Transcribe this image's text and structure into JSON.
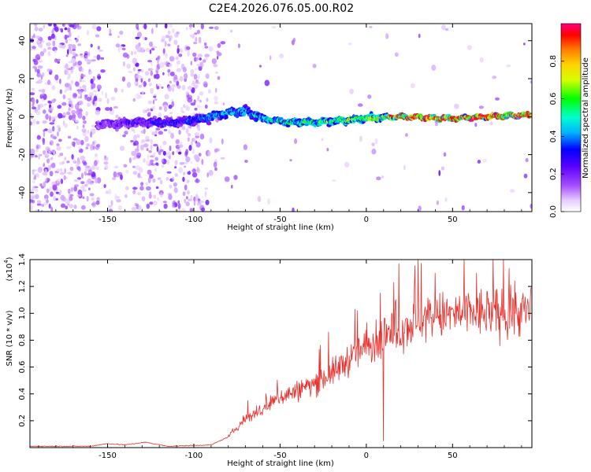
{
  "title": "C2E4.2026.076.05.00.R02",
  "chart_data": [
    {
      "type": "heatmap",
      "name": "spectrogram",
      "xlabel": "Height of straight line (km)",
      "ylabel": "Frequency (Hz)",
      "xlim": [
        -195,
        96
      ],
      "ylim": [
        -50,
        49
      ],
      "xticks": [
        -150,
        -100,
        -50,
        0,
        50
      ],
      "yticks": [
        -40,
        -20,
        0,
        20,
        40
      ],
      "colorbar": {
        "label": "Normalized spectral amplitude",
        "range": [
          0,
          1
        ],
        "ticks": [
          0.0,
          0.2,
          0.4,
          0.6,
          0.8
        ],
        "tick_labels": [
          "0.0",
          "0.2",
          "0.4",
          "0.6",
          "0.8"
        ],
        "colormap": [
          "#ffffff",
          "#b44bff",
          "#7a00ff",
          "#0000ff",
          "#00c8ff",
          "#00ff00",
          "#ffff00",
          "#ff7f00",
          "#ff0000",
          "#ff007f"
        ]
      },
      "ridge": [
        {
          "x": -155,
          "y": -4
        },
        {
          "x": -130,
          "y": -3
        },
        {
          "x": -110,
          "y": -3
        },
        {
          "x": -95,
          "y": -1
        },
        {
          "x": -80,
          "y": 2
        },
        {
          "x": -70,
          "y": 3
        },
        {
          "x": -60,
          "y": -1
        },
        {
          "x": -45,
          "y": -3
        },
        {
          "x": -30,
          "y": -3
        },
        {
          "x": -15,
          "y": -2
        },
        {
          "x": 0,
          "y": -1
        },
        {
          "x": 20,
          "y": 0
        },
        {
          "x": 50,
          "y": -1
        },
        {
          "x": 70,
          "y": 0
        },
        {
          "x": 96,
          "y": 1
        }
      ]
    },
    {
      "type": "line",
      "name": "snr",
      "xlabel": "Height of straight line (km)",
      "ylabel": "SNR (10 * v/v)",
      "scale_label": "(x10",
      "scale_exp": "4",
      "xlim": [
        -195,
        96
      ],
      "ylim": [
        0,
        1.4
      ],
      "xticks": [
        -150,
        -100,
        -50,
        0,
        50
      ],
      "yticks": [
        0.2,
        0.4,
        0.6,
        0.8,
        1.0,
        1.2,
        1.4
      ],
      "ytick_labels": [
        "0.2",
        "0.4",
        "0.6",
        "0.8",
        "1.0",
        "1.2",
        "1.4"
      ],
      "color": "#e8302c",
      "envelope": [
        {
          "x": -195,
          "y": 0.01
        },
        {
          "x": -160,
          "y": 0.01
        },
        {
          "x": -150,
          "y": 0.03
        },
        {
          "x": -140,
          "y": 0.02
        },
        {
          "x": -128,
          "y": 0.04
        },
        {
          "x": -115,
          "y": 0.01
        },
        {
          "x": -90,
          "y": 0.02
        },
        {
          "x": -80,
          "y": 0.08
        },
        {
          "x": -70,
          "y": 0.22
        },
        {
          "x": -60,
          "y": 0.28
        },
        {
          "x": -50,
          "y": 0.38
        },
        {
          "x": -40,
          "y": 0.42
        },
        {
          "x": -30,
          "y": 0.48
        },
        {
          "x": -20,
          "y": 0.55
        },
        {
          "x": -10,
          "y": 0.66
        },
        {
          "x": 0,
          "y": 0.75
        },
        {
          "x": 10,
          "y": 0.8
        },
        {
          "x": 20,
          "y": 0.88
        },
        {
          "x": 30,
          "y": 0.95
        },
        {
          "x": 40,
          "y": 0.97
        },
        {
          "x": 50,
          "y": 0.99
        },
        {
          "x": 60,
          "y": 1.0
        },
        {
          "x": 70,
          "y": 1.0
        },
        {
          "x": 80,
          "y": 1.0
        },
        {
          "x": 96,
          "y": 1.02
        }
      ],
      "spikes": [
        {
          "x": 19,
          "y": 1.37
        },
        {
          "x": 30,
          "y": 1.4
        },
        {
          "x": 8,
          "y": 1.15
        },
        {
          "x": 40,
          "y": 1.3
        },
        {
          "x": 64,
          "y": 1.3
        },
        {
          "x": -5,
          "y": 1.02
        },
        {
          "x": -22,
          "y": 0.86
        },
        {
          "x": 10,
          "y": 0.05
        }
      ]
    }
  ]
}
